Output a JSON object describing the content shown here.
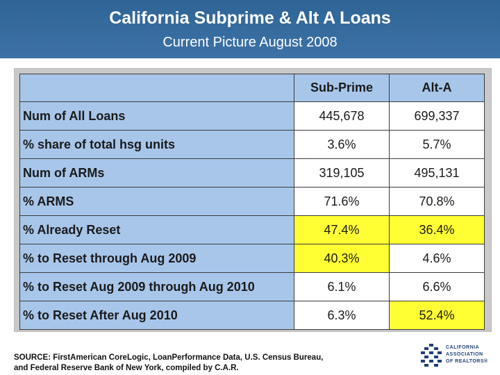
{
  "header": {
    "title": "California Subprime & Alt A Loans",
    "subtitle": "Current Picture August 2008"
  },
  "table": {
    "columns": [
      "",
      "Sub-Prime",
      "Alt-A"
    ],
    "rows": [
      {
        "label": "Num of All Loans",
        "sub_prime": "445,678",
        "alt_a": "699,337",
        "highlight_sub": false,
        "highlight_alt": false
      },
      {
        "label": "% share of total hsg units",
        "sub_prime": "3.6%",
        "alt_a": "5.7%",
        "highlight_sub": false,
        "highlight_alt": false
      },
      {
        "label": "Num of ARMs",
        "sub_prime": "319,105",
        "alt_a": "495,131",
        "highlight_sub": false,
        "highlight_alt": false
      },
      {
        "label": "% ARMS",
        "sub_prime": "71.6%",
        "alt_a": "70.8%",
        "highlight_sub": false,
        "highlight_alt": false
      },
      {
        "label": "% Already Reset",
        "sub_prime": "47.4%",
        "alt_a": "36.4%",
        "highlight_sub": true,
        "highlight_alt": true
      },
      {
        "label": "% to Reset through Aug 2009",
        "sub_prime": "40.3%",
        "alt_a": "4.6%",
        "highlight_sub": true,
        "highlight_alt": false
      },
      {
        "label": "% to Reset Aug 2009 through Aug 2010",
        "sub_prime": "6.1%",
        "alt_a": "6.6%",
        "highlight_sub": false,
        "highlight_alt": false
      },
      {
        "label": "% to Reset After Aug 2010",
        "sub_prime": "6.3%",
        "alt_a": "52.4%",
        "highlight_sub": false,
        "highlight_alt": true
      }
    ]
  },
  "source": {
    "line1": "SOURCE: FirstAmerican CoreLogic, LoanPerformance Data, U.S. Census Bureau,",
    "line2": "and Federal Reserve Bank of New York, compiled by C.A.R."
  },
  "logo": {
    "line1": "CALIFORNIA",
    "line2": "ASSOCIATION",
    "line3": "OF REALTORS®",
    "icon": "car-logo-icon",
    "color": "#1f3f7a"
  },
  "colors": {
    "header_bg": "#3d72a6",
    "label_bg": "#a8c6ea",
    "highlight": "#ffff33"
  }
}
